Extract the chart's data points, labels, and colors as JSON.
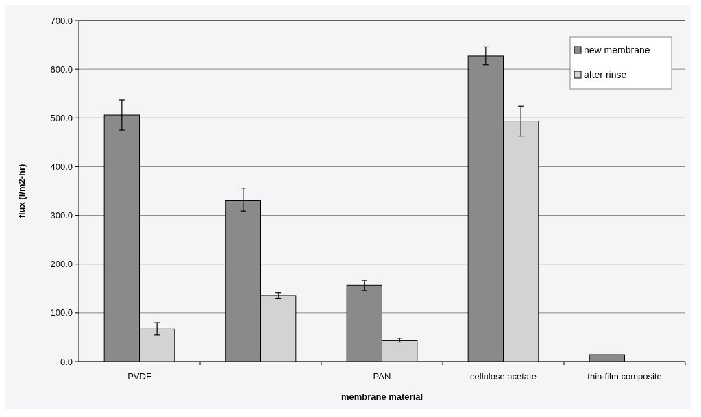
{
  "chart_data": {
    "type": "bar",
    "xlabel": "membrane material",
    "ylabel": "flux (l/m2-hr)",
    "categories": [
      "PVDF",
      null,
      "PAN",
      "cellulose acetate",
      "thin-film composite"
    ],
    "series": [
      {
        "name": "new membrane",
        "color": "#8a8a8a",
        "values": [
          506,
          331,
          157,
          627,
          14
        ],
        "errors": [
          [
            475,
            537
          ],
          [
            309,
            356
          ],
          [
            146,
            166
          ],
          [
            609,
            646
          ],
          null
        ]
      },
      {
        "name": "after rinse",
        "color": "#d3d3d3",
        "values": [
          67,
          135,
          43,
          494,
          null
        ],
        "errors": [
          [
            55,
            80
          ],
          [
            130,
            141
          ],
          [
            40,
            48
          ],
          [
            463,
            524
          ],
          null
        ]
      }
    ],
    "ylim": [
      0,
      700
    ],
    "yticks": [
      {
        "value": 0,
        "label": "0.0"
      },
      {
        "value": 100,
        "label": "100.0"
      },
      {
        "value": 200,
        "label": "200.0"
      },
      {
        "value": 300,
        "label": "300.0"
      },
      {
        "value": 400,
        "label": "400.0"
      },
      {
        "value": 500,
        "label": "500.0"
      },
      {
        "value": 600,
        "label": "600.0"
      },
      {
        "value": 700,
        "label": "700.0"
      }
    ],
    "grid": "y",
    "legend": "top right"
  }
}
